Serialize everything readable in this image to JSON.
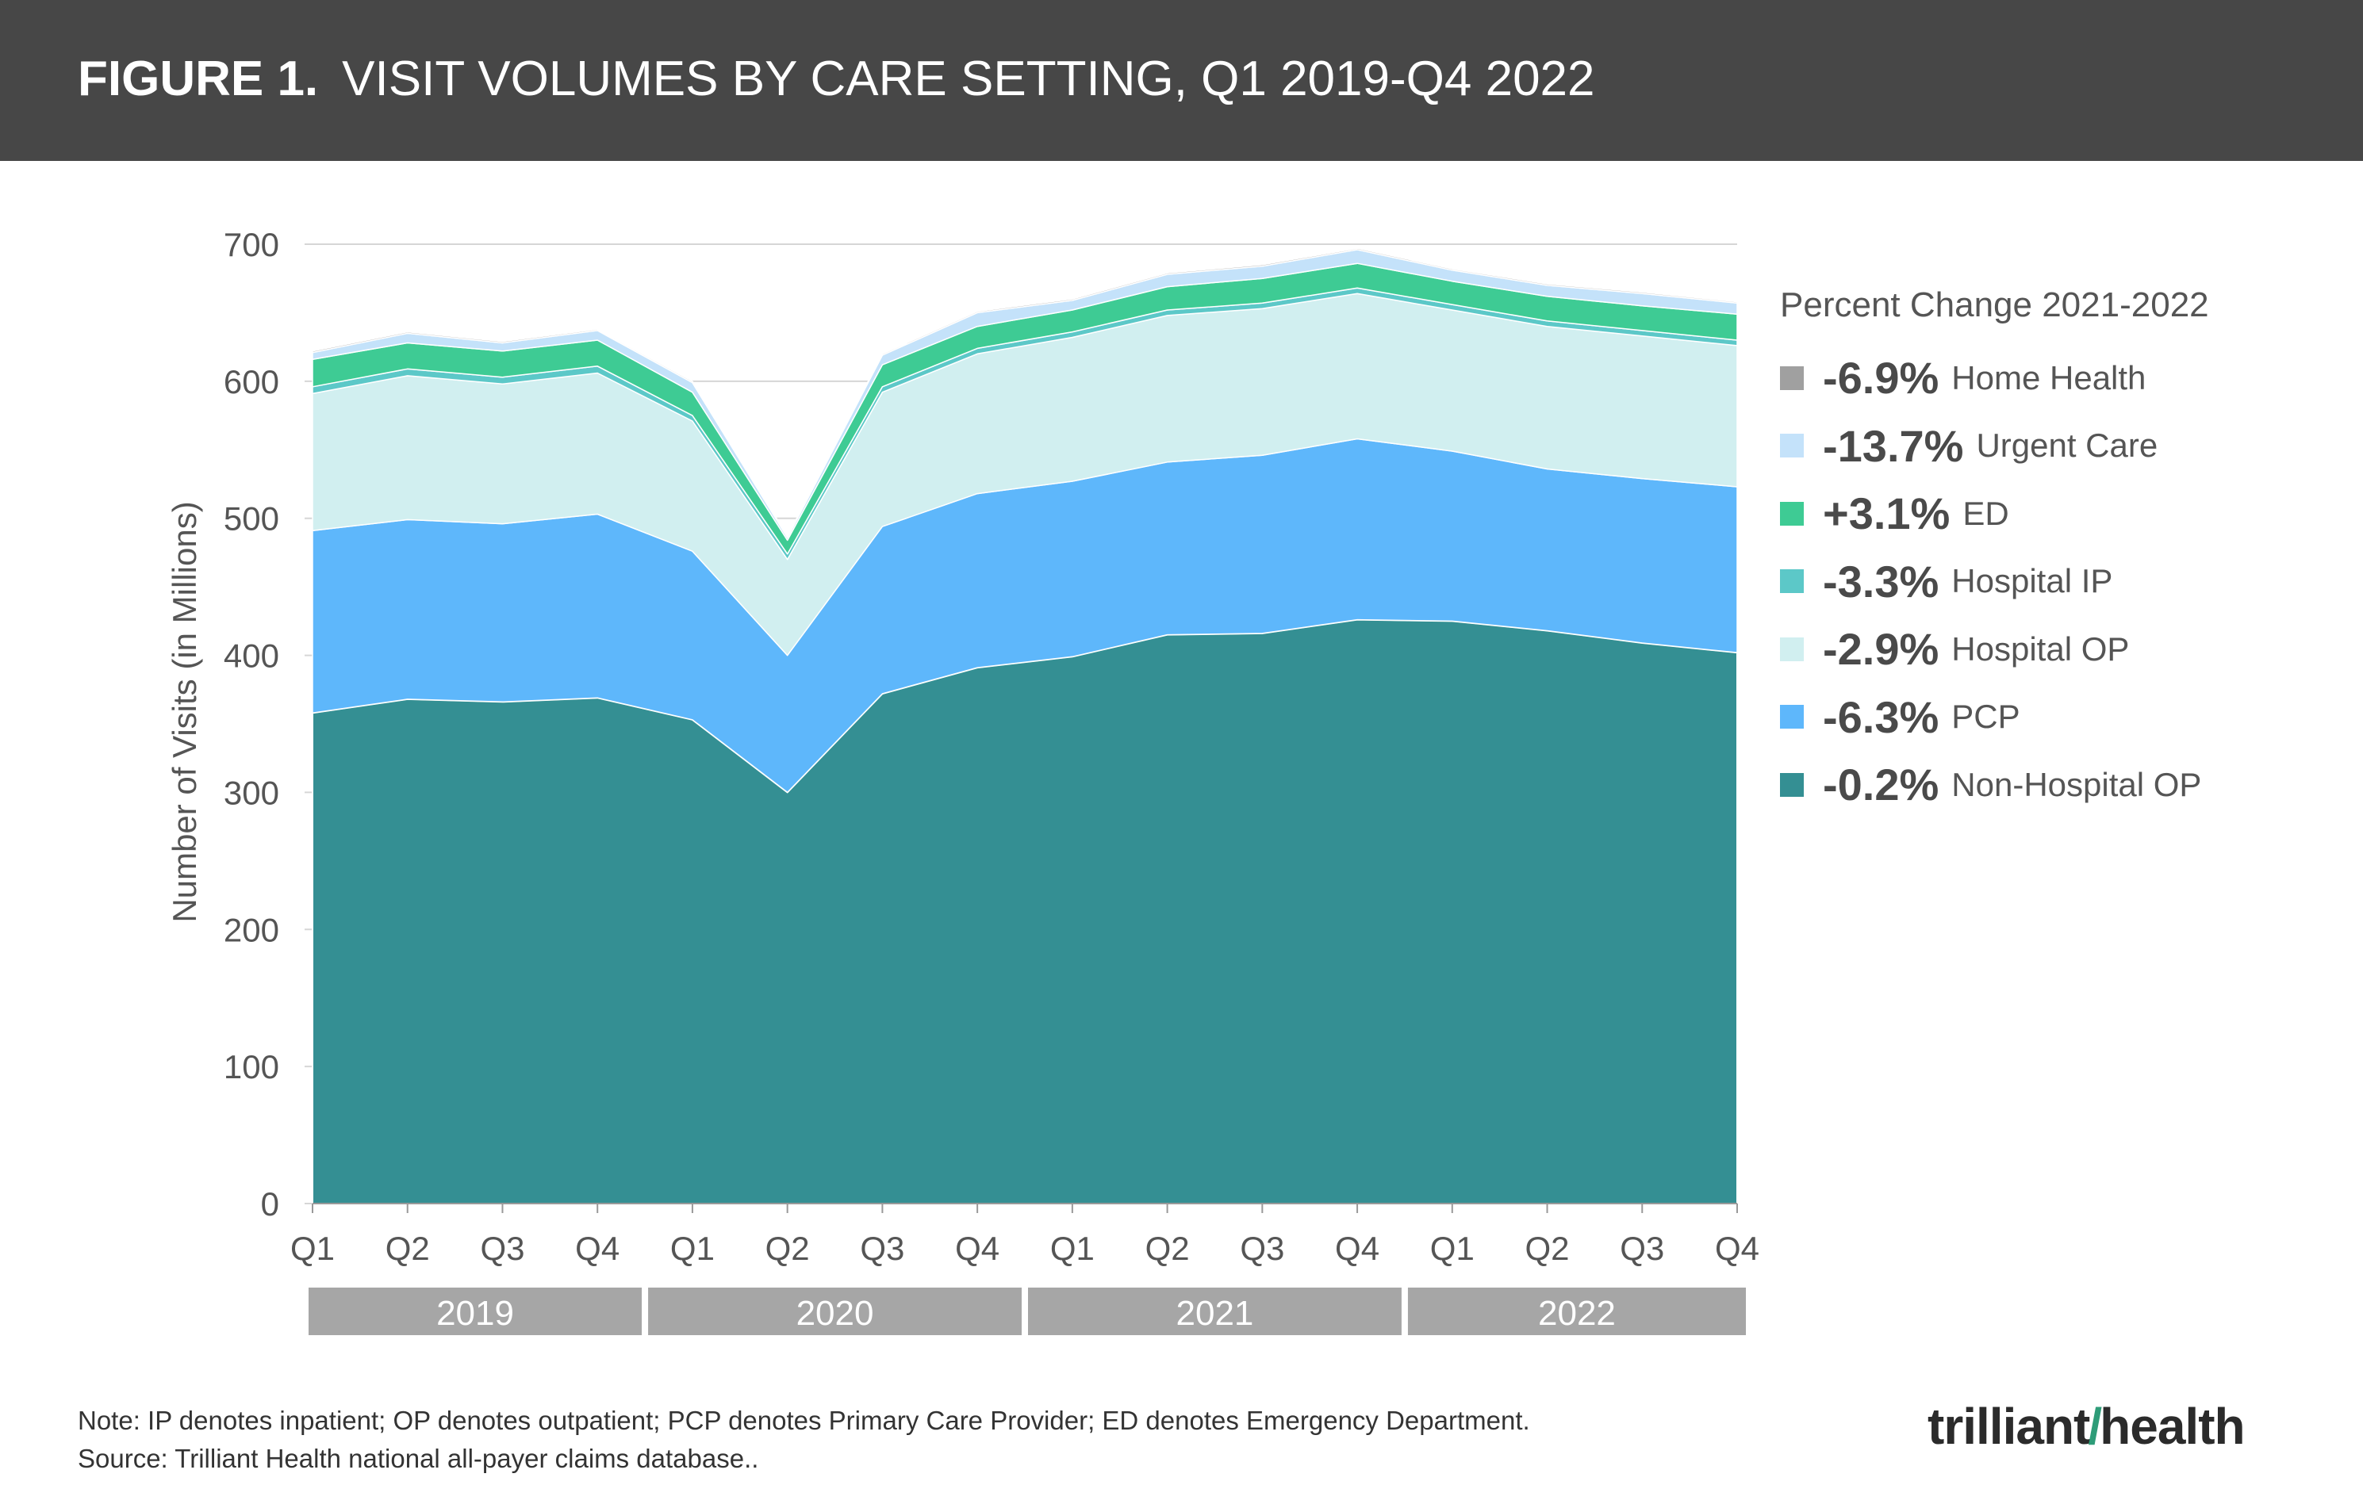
{
  "header": {
    "figure_label": "FIGURE 1.",
    "title": "VISIT VOLUMES BY CARE SETTING, Q1 2019-Q4 2022"
  },
  "chart_data": {
    "type": "area",
    "stacked": true,
    "ylabel": "Number of Visits (in Millions)",
    "ylim": [
      0,
      700
    ],
    "yticks": [
      "0",
      "100",
      "200",
      "300",
      "400",
      "500",
      "600",
      "700"
    ],
    "categories": [
      "Q1",
      "Q2",
      "Q3",
      "Q4",
      "Q1",
      "Q2",
      "Q3",
      "Q4",
      "Q1",
      "Q2",
      "Q3",
      "Q4",
      "Q1",
      "Q2",
      "Q3",
      "Q4"
    ],
    "year_groups": [
      {
        "label": "2019",
        "count": 4
      },
      {
        "label": "2020",
        "count": 4
      },
      {
        "label": "2021",
        "count": 4
      },
      {
        "label": "2022",
        "count": 4
      }
    ],
    "series": [
      {
        "name": "Non-Hospital OP",
        "color": "#348f93",
        "values": [
          358,
          368,
          366,
          369,
          353,
          300,
          372,
          391,
          399,
          415,
          416,
          426,
          425,
          418,
          409,
          402
        ]
      },
      {
        "name": "PCP",
        "color": "#5eb7fb",
        "values": [
          133,
          131,
          130,
          134,
          123,
          100,
          122,
          127,
          128,
          126,
          130,
          132,
          124,
          118,
          120,
          121
        ]
      },
      {
        "name": "Hospital OP",
        "color": "#d1eff0",
        "values": [
          100,
          105,
          102,
          103,
          95,
          70,
          98,
          102,
          105,
          107,
          107,
          106,
          103,
          104,
          104,
          103
        ]
      },
      {
        "name": "Hospital IP",
        "color": "#5cc8c8",
        "values": [
          5,
          5,
          5,
          5,
          4,
          4,
          4,
          4,
          4,
          4,
          4,
          4,
          4,
          4,
          4,
          4
        ]
      },
      {
        "name": "ED",
        "color": "#3ecb94",
        "values": [
          20,
          19,
          19,
          19,
          17,
          10,
          16,
          16,
          16,
          17,
          18,
          18,
          17,
          18,
          18,
          19
        ]
      },
      {
        "name": "Urgent Care",
        "color": "#c4e2fa",
        "values": [
          5,
          7,
          6,
          7,
          7,
          2,
          7,
          10,
          7,
          9,
          9,
          10,
          8,
          8,
          9,
          8
        ]
      },
      {
        "name": "Home Health",
        "color": "#a0a0a0",
        "values": [
          1,
          1,
          1,
          1,
          1,
          1,
          1,
          1,
          1,
          1,
          1,
          1,
          1,
          1,
          1,
          1
        ]
      }
    ],
    "legend": {
      "title": "Percent Change 2021-2022",
      "placement": "right",
      "items": [
        {
          "pct": "-6.9%",
          "label": "Home Health",
          "color": "#a0a0a0"
        },
        {
          "pct": "-13.7%",
          "label": "Urgent Care",
          "color": "#c4e2fa"
        },
        {
          "pct": "+3.1%",
          "label": "ED",
          "color": "#3ecb94"
        },
        {
          "pct": "-3.3%",
          "label": "Hospital IP",
          "color": "#5cc8c8"
        },
        {
          "pct": "-2.9%",
          "label": "Hospital OP",
          "color": "#d1eff0"
        },
        {
          "pct": "-6.3%",
          "label": "PCP",
          "color": "#5eb7fb"
        },
        {
          "pct": "-0.2%",
          "label": "Non-Hospital OP",
          "color": "#348f93"
        }
      ]
    }
  },
  "notes": [
    "Note: IP denotes inpatient; OP denotes outpatient; PCP denotes Primary Care Provider; ED denotes Emergency Department.",
    "Source: Trilliant Health national all-payer claims database.."
  ],
  "logo": {
    "left": "trilliant",
    "right": "health"
  }
}
